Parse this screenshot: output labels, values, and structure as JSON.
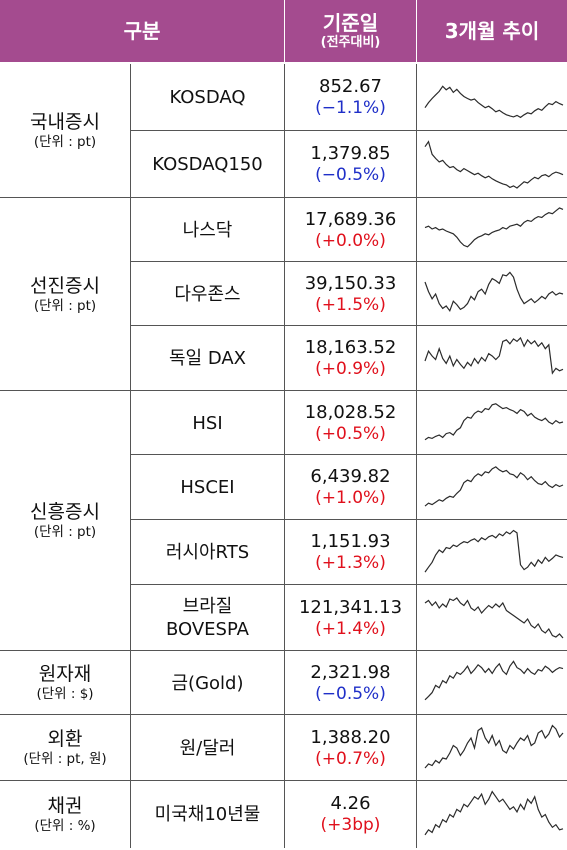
{
  "header": {
    "category": "구분",
    "base_date": "기준일",
    "base_date_sub": "(전주대비)",
    "trend": "3개월 추이"
  },
  "groups": [
    {
      "title": "국내증시",
      "unit": "(단위 : pt)"
    },
    {
      "title": "선진증시",
      "unit": "(단위 : pt)"
    },
    {
      "title": "신흥증시",
      "unit": "(단위 : pt)"
    },
    {
      "title": "원자재",
      "unit": "(단위 : $)"
    },
    {
      "title": "외환",
      "unit": "(단위 : pt, 원)"
    },
    {
      "title": "채권",
      "unit": "(단위 : %)"
    }
  ],
  "rows": [
    {
      "name": "KOSDAQ",
      "value": "852.67",
      "change": "(−1.1%)",
      "direction": "down",
      "trend": [
        0.3,
        0.4,
        0.48,
        0.55,
        0.62,
        0.72,
        0.65,
        0.7,
        0.6,
        0.66,
        0.58,
        0.52,
        0.48,
        0.45,
        0.47,
        0.4,
        0.35,
        0.3,
        0.33,
        0.28,
        0.22,
        0.25,
        0.2,
        0.16,
        0.14,
        0.12,
        0.15,
        0.11,
        0.16,
        0.2,
        0.18,
        0.24,
        0.28,
        0.25,
        0.32,
        0.38,
        0.36,
        0.42,
        0.38,
        0.35
      ]
    },
    {
      "name": "KOSDAQ150",
      "value": "1,379.85",
      "change": "(−0.5%)",
      "direction": "down",
      "trend": [
        0.85,
        0.95,
        0.7,
        0.62,
        0.55,
        0.58,
        0.5,
        0.44,
        0.46,
        0.4,
        0.36,
        0.42,
        0.38,
        0.34,
        0.3,
        0.33,
        0.28,
        0.24,
        0.27,
        0.22,
        0.18,
        0.15,
        0.12,
        0.1,
        0.05,
        0.08,
        0.04,
        0.1,
        0.16,
        0.14,
        0.2,
        0.25,
        0.22,
        0.28,
        0.3,
        0.26,
        0.32,
        0.35,
        0.33,
        0.3
      ]
    },
    {
      "name": "나스닥",
      "value": "17,689.36",
      "change": "(+0.0%)",
      "direction": "up",
      "trend": [
        0.55,
        0.58,
        0.52,
        0.55,
        0.5,
        0.52,
        0.48,
        0.45,
        0.42,
        0.35,
        0.25,
        0.18,
        0.15,
        0.22,
        0.3,
        0.35,
        0.38,
        0.42,
        0.4,
        0.45,
        0.48,
        0.5,
        0.55,
        0.52,
        0.58,
        0.6,
        0.62,
        0.58,
        0.66,
        0.7,
        0.68,
        0.74,
        0.78,
        0.76,
        0.82,
        0.86,
        0.84,
        0.9,
        0.96,
        0.93
      ]
    },
    {
      "name": "다우존스",
      "value": "39,150.33",
      "change": "(+1.5%)",
      "direction": "up",
      "trend": [
        0.75,
        0.55,
        0.4,
        0.5,
        0.3,
        0.2,
        0.25,
        0.15,
        0.35,
        0.28,
        0.18,
        0.22,
        0.3,
        0.45,
        0.38,
        0.55,
        0.6,
        0.5,
        0.7,
        0.82,
        0.78,
        0.72,
        0.9,
        0.88,
        0.95,
        0.85,
        0.6,
        0.42,
        0.3,
        0.35,
        0.4,
        0.32,
        0.38,
        0.45,
        0.4,
        0.5,
        0.55,
        0.48,
        0.52,
        0.5
      ]
    },
    {
      "name": "독일 DAX",
      "value": "18,163.52",
      "change": "(+0.9%)",
      "direction": "up",
      "trend": [
        0.45,
        0.65,
        0.55,
        0.48,
        0.7,
        0.5,
        0.4,
        0.55,
        0.35,
        0.48,
        0.38,
        0.3,
        0.42,
        0.35,
        0.5,
        0.4,
        0.52,
        0.45,
        0.6,
        0.55,
        0.48,
        0.55,
        0.85,
        0.88,
        0.8,
        0.9,
        0.85,
        0.92,
        0.75,
        0.88,
        0.8,
        0.86,
        0.75,
        0.82,
        0.7,
        0.78,
        0.2,
        0.3,
        0.25,
        0.28
      ]
    },
    {
      "name": "HSI",
      "value": "18,028.52",
      "change": "(+0.5%)",
      "direction": "up",
      "trend": [
        0.15,
        0.2,
        0.18,
        0.22,
        0.25,
        0.2,
        0.28,
        0.3,
        0.25,
        0.35,
        0.4,
        0.55,
        0.62,
        0.6,
        0.7,
        0.75,
        0.72,
        0.8,
        0.78,
        0.88,
        0.9,
        0.85,
        0.8,
        0.82,
        0.78,
        0.75,
        0.7,
        0.78,
        0.74,
        0.65,
        0.7,
        0.62,
        0.58,
        0.55,
        0.6,
        0.52,
        0.48,
        0.55,
        0.5,
        0.52
      ]
    },
    {
      "name": "HSCEI",
      "value": "6,439.82",
      "change": "(+1.0%)",
      "direction": "up",
      "trend": [
        0.12,
        0.18,
        0.15,
        0.2,
        0.25,
        0.22,
        0.28,
        0.32,
        0.3,
        0.38,
        0.45,
        0.6,
        0.65,
        0.62,
        0.72,
        0.78,
        0.74,
        0.82,
        0.8,
        0.88,
        0.92,
        0.86,
        0.82,
        0.85,
        0.78,
        0.76,
        0.7,
        0.8,
        0.75,
        0.66,
        0.72,
        0.64,
        0.58,
        0.56,
        0.62,
        0.54,
        0.5,
        0.56,
        0.52,
        0.55
      ]
    },
    {
      "name": "러시아RTS",
      "value": "1,151.93",
      "change": "(+1.3%)",
      "direction": "up",
      "trend": [
        0.1,
        0.2,
        0.3,
        0.45,
        0.55,
        0.5,
        0.6,
        0.58,
        0.65,
        0.62,
        0.68,
        0.72,
        0.7,
        0.75,
        0.78,
        0.72,
        0.8,
        0.76,
        0.82,
        0.85,
        0.8,
        0.88,
        0.84,
        0.92,
        0.88,
        0.95,
        0.9,
        0.25,
        0.15,
        0.2,
        0.3,
        0.22,
        0.35,
        0.28,
        0.4,
        0.32,
        0.38,
        0.45,
        0.42,
        0.4
      ]
    },
    {
      "name": "브라질\nBOVESPA",
      "value": "121,341.13",
      "change": "(+1.4%)",
      "direction": "up",
      "trend": [
        0.8,
        0.85,
        0.75,
        0.82,
        0.7,
        0.78,
        0.72,
        0.88,
        0.85,
        0.9,
        0.8,
        0.75,
        0.85,
        0.7,
        0.65,
        0.72,
        0.6,
        0.68,
        0.75,
        0.7,
        0.78,
        0.72,
        0.8,
        0.65,
        0.6,
        0.55,
        0.5,
        0.45,
        0.4,
        0.48,
        0.35,
        0.3,
        0.38,
        0.25,
        0.2,
        0.28,
        0.15,
        0.12,
        0.18,
        0.1
      ]
    },
    {
      "name": "금(Gold)",
      "value": "2,321.98",
      "change": "(−0.5%)",
      "direction": "down",
      "trend": [
        0.15,
        0.22,
        0.3,
        0.45,
        0.4,
        0.55,
        0.5,
        0.65,
        0.6,
        0.72,
        0.68,
        0.75,
        0.85,
        0.7,
        0.78,
        0.88,
        0.82,
        0.72,
        0.8,
        0.7,
        0.82,
        0.9,
        0.75,
        0.68,
        0.85,
        0.95,
        0.82,
        0.78,
        0.7,
        0.8,
        0.72,
        0.68,
        0.78,
        0.75,
        0.85,
        0.8,
        0.72,
        0.78,
        0.82,
        0.8
      ]
    },
    {
      "name": "원/달러",
      "value": "1,388.20",
      "change": "(+0.7%)",
      "direction": "up",
      "trend": [
        0.1,
        0.18,
        0.15,
        0.25,
        0.2,
        0.3,
        0.28,
        0.4,
        0.55,
        0.5,
        0.35,
        0.45,
        0.6,
        0.7,
        0.5,
        0.85,
        0.9,
        0.7,
        0.6,
        0.75,
        0.55,
        0.65,
        0.45,
        0.4,
        0.55,
        0.48,
        0.6,
        0.7,
        0.65,
        0.75,
        0.55,
        0.6,
        0.8,
        0.85,
        0.7,
        0.78,
        0.95,
        0.88,
        0.72,
        0.8
      ]
    },
    {
      "name": "미국채10년물",
      "value": "4.26",
      "change": "(+3bp)",
      "direction": "up",
      "trend": [
        0.1,
        0.2,
        0.15,
        0.3,
        0.25,
        0.4,
        0.35,
        0.5,
        0.45,
        0.6,
        0.55,
        0.7,
        0.65,
        0.75,
        0.85,
        0.8,
        0.9,
        0.7,
        0.8,
        0.95,
        0.85,
        0.75,
        0.8,
        0.7,
        0.6,
        0.65,
        0.55,
        0.7,
        0.6,
        0.8,
        0.72,
        0.85,
        0.6,
        0.45,
        0.5,
        0.35,
        0.25,
        0.3,
        0.2,
        0.22
      ]
    }
  ],
  "colors": {
    "header_bg": "#a44b8f",
    "negative": "#1f2fc8",
    "positive": "#e0101c"
  }
}
